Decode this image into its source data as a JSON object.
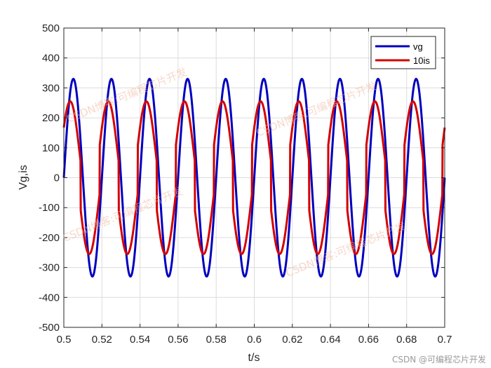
{
  "chart_data": {
    "type": "line",
    "title": "",
    "xlabel": "t/s",
    "ylabel": "Vg,is",
    "xlim": [
      0.5,
      0.7
    ],
    "ylim": [
      -500,
      500
    ],
    "xticks": [
      "0.5",
      "0.52",
      "0.54",
      "0.56",
      "0.58",
      "0.6",
      "0.62",
      "0.64",
      "0.66",
      "0.68",
      "0.7"
    ],
    "yticks": [
      "500",
      "400",
      "300",
      "200",
      "100",
      "0",
      "-100",
      "-200",
      "-300",
      "-400",
      "-500"
    ],
    "grid": true,
    "legend_position": "top-right",
    "series": [
      {
        "name": "vg",
        "color": "#0000c0",
        "amplitude": 330,
        "frequency_hz": 50,
        "phase_deg": 0
      },
      {
        "name": "10is",
        "color": "#d40000",
        "amplitude": 175,
        "frequency_hz": 50,
        "phase_deg": 30,
        "step_magnitude": 80,
        "step_period_s": 0.01,
        "first_step_t": 0.5088
      }
    ]
  },
  "watermarks": [
    "CSDN博客:可编程芯片开发",
    "CSDN博客:可编程芯片开发",
    "CSDN博客:可编程芯片开发",
    "CSDN博客:可编程芯片开发"
  ],
  "credit": "CSDN @可编程芯片开发"
}
